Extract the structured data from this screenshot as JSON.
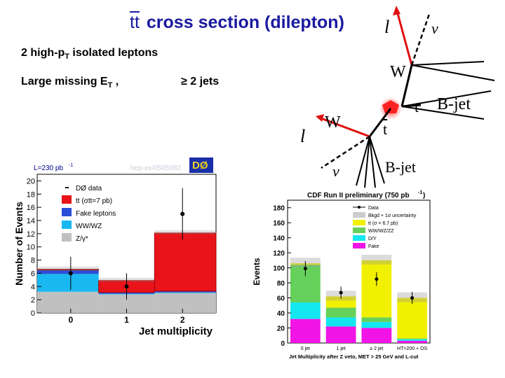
{
  "title": {
    "tt": "tt",
    "text": "cross section (dilepton)"
  },
  "bullets": {
    "leptons_main": "2 high-p",
    "leptons_sub": "T",
    "leptons_rest": " isolated leptons",
    "met_main": "Large missing E",
    "met_sub": "T",
    "met_rest": " ,",
    "jets": "≥ 2 jets"
  },
  "diagram": {
    "l_top": "l",
    "nu_top": "ν",
    "w_top": "W",
    "t_right": "t",
    "bjet_right": "B-jet",
    "w_left": "W",
    "tbar": "t",
    "l_left": "l",
    "nu_bottom": "ν",
    "bjet_bottom": "B-jet"
  },
  "colors": {
    "title": "#1a1aa0",
    "ttbar": "#e8141a",
    "fake": "#2a4dd8",
    "wwwz": "#1ab8f0",
    "zgamma": "#c0c0c0",
    "cdf_green": "#66d15a",
    "cdf_yellow": "#f0f000",
    "cdf_cyan": "#14e6f0",
    "cdf_magenta": "#f014e6"
  },
  "chart_data": [
    {
      "type": "bar",
      "stacked": true,
      "title": "",
      "luminosity_label": "L=230 pb",
      "luminosity_sup": "-1",
      "watermark": "hep-ex/0505082",
      "logo": "DØ",
      "xlabel": "Jet multiplicity",
      "ylabel": "Number of Events",
      "categories": [
        "0",
        "1",
        "2"
      ],
      "xticks": [
        "0",
        "1",
        "2"
      ],
      "ylim": [
        0,
        21
      ],
      "yticks": [
        "0",
        "2",
        "4",
        "6",
        "8",
        "10",
        "12",
        "14",
        "16",
        "18",
        "20"
      ],
      "series": [
        {
          "name": "Z/γ*",
          "values": [
            3.2,
            2.8,
            3.0
          ]
        },
        {
          "name": "WW/WZ",
          "values": [
            2.7,
            0.1,
            0.1
          ]
        },
        {
          "name": "Fake leptons",
          "values": [
            0.6,
            0.2,
            0.2
          ]
        },
        {
          "name": "tt (σtt=7 pb)",
          "values": [
            0.1,
            1.8,
            8.8
          ]
        }
      ],
      "data_points": {
        "name": "DØ data",
        "values": [
          6,
          4,
          15
        ],
        "errors": [
          2.5,
          2.0,
          3.9
        ]
      },
      "legend": [
        "DØ data",
        "tt (σtt=7 pb)",
        "Fake leptons",
        "WW/WZ",
        "Z/γ*"
      ]
    },
    {
      "type": "bar",
      "stacked": true,
      "title": "CDF Run II preliminary (750 pb",
      "title_sup": "-1",
      "title_end": ")",
      "xlabel": "Jet Multiplicity after Z veto, MET > 25 GeV and L-cut",
      "ylabel": "Events",
      "categories": [
        "0 jet",
        "1 jet",
        "≥ 2 jet",
        "HT>200 + OS"
      ],
      "ylim": [
        0,
        190
      ],
      "yticks": [
        "0",
        "20",
        "40",
        "60",
        "80",
        "100",
        "120",
        "140",
        "160",
        "180"
      ],
      "series": [
        {
          "name": "Fake",
          "values": [
            32,
            22,
            20,
            3
          ]
        },
        {
          "name": "D/Y",
          "values": [
            22,
            12,
            8,
            2
          ]
        },
        {
          "name": "WW/WZ/ZZ",
          "values": [
            50,
            13,
            6,
            1
          ]
        },
        {
          "name": "tt (σ = 6.7 pb)",
          "values": [
            2,
            15,
            76,
            54
          ]
        }
      ],
      "data_points": {
        "name": "Data",
        "values": [
          99,
          67,
          85,
          60
        ],
        "errors": [
          10,
          8,
          9,
          8
        ]
      },
      "legend": [
        "Data",
        "Bkgd + 1σ uncertainty",
        "tt (σ = 6.7 pb)",
        "WW/WZ/ZZ",
        "D/Y",
        "Fake"
      ]
    }
  ]
}
